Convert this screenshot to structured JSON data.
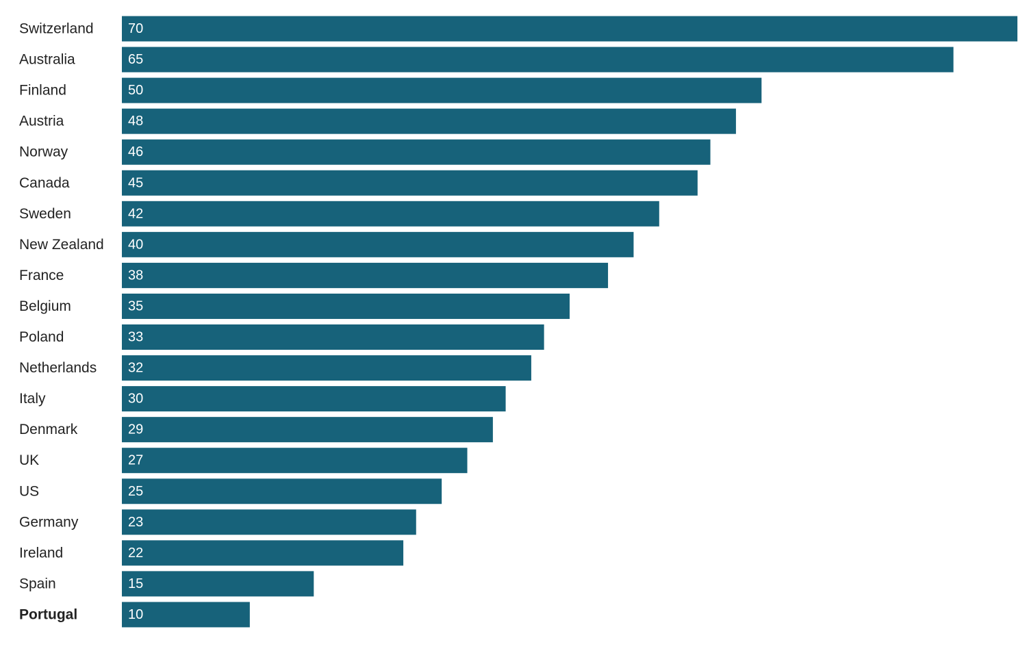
{
  "chart_data": {
    "type": "bar",
    "orientation": "horizontal",
    "categories": [
      "Switzerland",
      "Australia",
      "Finland",
      "Austria",
      "Norway",
      "Canada",
      "Sweden",
      "New Zealand",
      "France",
      "Belgium",
      "Poland",
      "Netherlands",
      "Italy",
      "Denmark",
      "UK",
      "US",
      "Germany",
      "Ireland",
      "Spain",
      "Portugal"
    ],
    "values": [
      70,
      65,
      50,
      48,
      46,
      45,
      42,
      40,
      38,
      35,
      33,
      32,
      30,
      29,
      27,
      25,
      23,
      22,
      15,
      10
    ],
    "color": "#17627a",
    "highlight": "Portugal"
  }
}
